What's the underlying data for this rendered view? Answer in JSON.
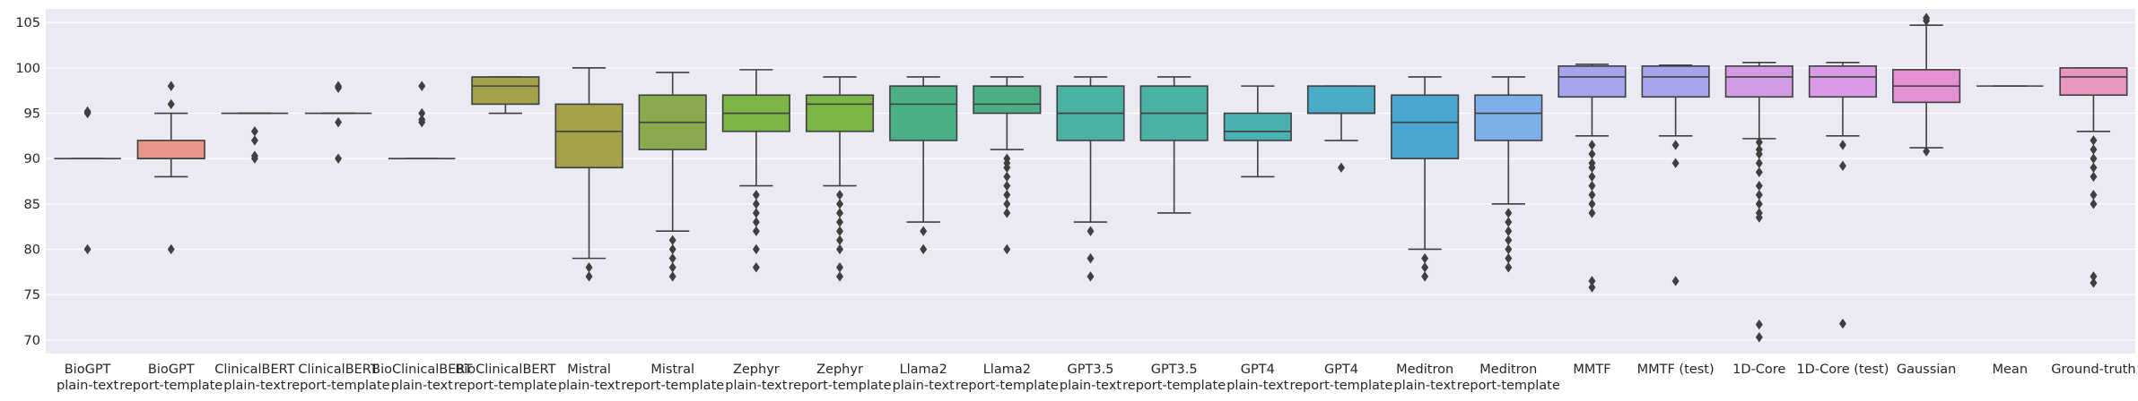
{
  "chart_data": {
    "type": "box",
    "title": "",
    "xlabel": "",
    "ylabel": "",
    "ylim": [
      68.5,
      106.5
    ],
    "yticks": [
      70,
      75,
      80,
      85,
      90,
      95,
      100,
      105
    ],
    "grid": true,
    "legend": "none",
    "background_color": "#eaeaf2",
    "line_color": "#3f3f3f",
    "boxes": [
      {
        "label": [
          "BioGPT",
          "plain-text"
        ],
        "color": "#bababa",
        "q1": 90,
        "median": 90,
        "q3": 90,
        "whislo": 90,
        "whishi": 90,
        "fliers": [
          95,
          95.2,
          80
        ]
      },
      {
        "label": [
          "BioGPT",
          "report-template"
        ],
        "color": "#e9968a",
        "q1": 90,
        "median": 90,
        "q3": 92,
        "whislo": 88,
        "whishi": 95,
        "fliers": [
          98,
          96,
          80
        ]
      },
      {
        "label": [
          "ClinicalBERT",
          "plain-text"
        ],
        "color": "#bababa",
        "q1": 95,
        "median": 95,
        "q3": 95,
        "whislo": 95,
        "whishi": 95,
        "fliers": [
          93,
          92,
          90.3,
          90
        ]
      },
      {
        "label": [
          "ClinicalBERT",
          "report-template"
        ],
        "color": "#bababa",
        "q1": 95,
        "median": 95,
        "q3": 95,
        "whislo": 95,
        "whishi": 95,
        "fliers": [
          98,
          97.8,
          94,
          90
        ]
      },
      {
        "label": [
          "BioClinicalBERT",
          "plain-text"
        ],
        "color": "#bababa",
        "q1": 90,
        "median": 90,
        "q3": 90,
        "whislo": 90,
        "whishi": 90,
        "fliers": [
          98,
          95,
          94.3,
          94
        ]
      },
      {
        "label": [
          "BioClinicalBERT",
          "report-template"
        ],
        "color": "#a3a24b",
        "q1": 96,
        "median": 98,
        "q3": 99,
        "whislo": 95,
        "whishi": 99,
        "fliers": []
      },
      {
        "label": [
          "Mistral",
          "plain-text"
        ],
        "color": "#a3a24b",
        "q1": 89,
        "median": 93,
        "q3": 96,
        "whislo": 79,
        "whishi": 100,
        "fliers": [
          78,
          77
        ]
      },
      {
        "label": [
          "Mistral",
          "report-template"
        ],
        "color": "#8aaa4e",
        "q1": 91,
        "median": 94,
        "q3": 97,
        "whislo": 82,
        "whishi": 99.5,
        "fliers": [
          81,
          80,
          79,
          78,
          77
        ]
      },
      {
        "label": [
          "Zephyr",
          "plain-text"
        ],
        "color": "#7bb545",
        "q1": 93,
        "median": 95,
        "q3": 97,
        "whislo": 87,
        "whishi": 99.8,
        "fliers": [
          86,
          85,
          84,
          83,
          82,
          80,
          78
        ]
      },
      {
        "label": [
          "Zephyr",
          "report-template"
        ],
        "color": "#7bb545",
        "q1": 93,
        "median": 96,
        "q3": 97,
        "whislo": 87,
        "whishi": 99,
        "fliers": [
          86,
          85,
          84,
          83,
          82,
          81,
          80,
          78,
          77
        ]
      },
      {
        "label": [
          "Llama2",
          "plain-text"
        ],
        "color": "#4bae85",
        "q1": 92,
        "median": 96,
        "q3": 98,
        "whislo": 83,
        "whishi": 99,
        "fliers": [
          82,
          80
        ]
      },
      {
        "label": [
          "Llama2",
          "report-template"
        ],
        "color": "#4bae85",
        "q1": 95,
        "median": 96,
        "q3": 98,
        "whislo": 91,
        "whishi": 99,
        "fliers": [
          90,
          89.5,
          89,
          88,
          87,
          86,
          85,
          84,
          80
        ]
      },
      {
        "label": [
          "GPT3.5",
          "plain-text"
        ],
        "color": "#4bb1a3",
        "q1": 92,
        "median": 95,
        "q3": 98,
        "whislo": 83,
        "whishi": 99,
        "fliers": [
          82,
          79,
          77
        ]
      },
      {
        "label": [
          "GPT3.5",
          "report-template"
        ],
        "color": "#4bb1a3",
        "q1": 92,
        "median": 95,
        "q3": 98,
        "whislo": 84,
        "whishi": 99,
        "fliers": []
      },
      {
        "label": [
          "GPT4",
          "plain-text"
        ],
        "color": "#4ab1b1",
        "q1": 92,
        "median": 93,
        "q3": 95,
        "whislo": 88,
        "whishi": 98,
        "fliers": []
      },
      {
        "label": [
          "GPT4",
          "report-template"
        ],
        "color": "#4bacc6",
        "q1": 95,
        "median": 95,
        "q3": 98,
        "whislo": 92,
        "whishi": 98,
        "fliers": [
          89
        ]
      },
      {
        "label": [
          "Meditron",
          "plain-text"
        ],
        "color": "#4ba6d1",
        "q1": 90,
        "median": 94,
        "q3": 97,
        "whislo": 80,
        "whishi": 99,
        "fliers": [
          79,
          78,
          77
        ]
      },
      {
        "label": [
          "Meditron",
          "report-template"
        ],
        "color": "#7eaee8",
        "q1": 92,
        "median": 95,
        "q3": 97,
        "whislo": 85,
        "whishi": 99,
        "fliers": [
          84,
          83,
          82,
          81,
          80,
          79,
          78
        ]
      },
      {
        "label": [
          "MMTF",
          ""
        ],
        "color": "#a6a4ec",
        "q1": 96.8,
        "median": 99,
        "q3": 100.2,
        "whislo": 92.5,
        "whishi": 100.4,
        "fliers": [
          91.5,
          90.5,
          89.5,
          89,
          88,
          87,
          86,
          85,
          84,
          76.5,
          75.8
        ]
      },
      {
        "label": [
          "MMTF (test)",
          ""
        ],
        "color": "#a6a4ec",
        "q1": 96.8,
        "median": 99,
        "q3": 100.2,
        "whislo": 92.5,
        "whishi": 100.3,
        "fliers": [
          91.5,
          89.5,
          76.5
        ]
      },
      {
        "label": [
          "1D-Core",
          ""
        ],
        "color": "#d49be5",
        "q1": 96.8,
        "median": 99,
        "q3": 100.2,
        "whislo": 92.2,
        "whishi": 100.6,
        "fliers": [
          91.8,
          91,
          90.5,
          89.5,
          88.5,
          87,
          86,
          85,
          84,
          83.5,
          71.7,
          70.3
        ]
      },
      {
        "label": [
          "1D-Core (test)",
          ""
        ],
        "color": "#d99be6",
        "q1": 96.8,
        "median": 99,
        "q3": 100.2,
        "whislo": 92.5,
        "whishi": 100.6,
        "fliers": [
          91.5,
          89.2,
          71.8
        ]
      },
      {
        "label": [
          "Gaussian",
          ""
        ],
        "color": "#e491d4",
        "q1": 96.2,
        "median": 98,
        "q3": 99.8,
        "whislo": 91.2,
        "whishi": 104.7,
        "fliers": [
          105.5,
          105.2,
          90.8
        ]
      },
      {
        "label": [
          "Mean",
          ""
        ],
        "color": "#e491d4",
        "q1": 98,
        "median": 98,
        "q3": 98,
        "whislo": 98,
        "whishi": 98,
        "fliers": []
      },
      {
        "label": [
          "Ground-truth",
          ""
        ],
        "color": "#e895c0",
        "q1": 97,
        "median": 99,
        "q3": 100,
        "whislo": 93,
        "whishi": 100,
        "fliers": [
          92,
          91,
          90,
          89,
          88,
          86,
          85,
          77,
          76.3
        ]
      }
    ]
  }
}
